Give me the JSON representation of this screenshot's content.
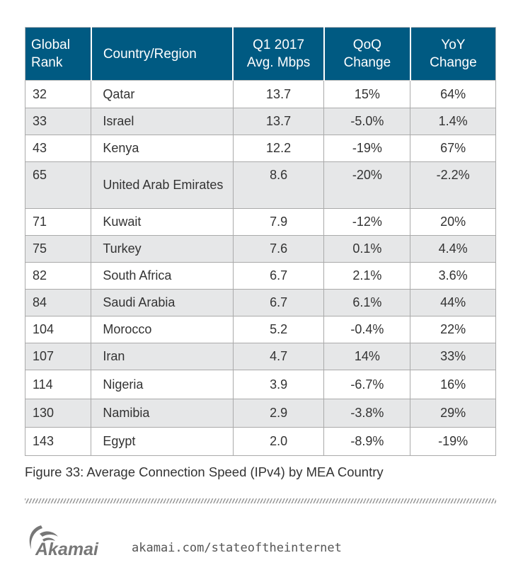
{
  "table": {
    "headers": [
      [
        "Global",
        "Rank"
      ],
      [
        "Country/Region"
      ],
      [
        "Q1 2017",
        "Avg. Mbps"
      ],
      [
        "QoQ",
        "Change"
      ],
      [
        "YoY",
        "Change"
      ]
    ],
    "rows": [
      [
        "32",
        "Qatar",
        "13.7",
        "15%",
        "64%"
      ],
      [
        "33",
        "Israel",
        "13.7",
        "-5.0%",
        "1.4%"
      ],
      [
        "43",
        "Kenya",
        "12.2",
        "-19%",
        "67%"
      ],
      [
        "65",
        "United Arab Emirates",
        "8.6",
        "-20%",
        "-2.2%"
      ],
      [
        "71",
        "Kuwait",
        "7.9",
        "-12%",
        "20%"
      ],
      [
        "75",
        "Turkey",
        "7.6",
        "0.1%",
        "4.4%"
      ],
      [
        "82",
        "South Africa",
        "6.7",
        "2.1%",
        "3.6%"
      ],
      [
        "84",
        "Saudi Arabia",
        "6.7",
        "6.1%",
        "44%"
      ],
      [
        "104",
        "Morocco",
        "5.2",
        "-0.4%",
        "22%"
      ],
      [
        "107",
        "Iran",
        "4.7",
        "14%",
        "33%"
      ],
      [
        "114",
        "Nigeria",
        "3.9",
        "-6.7%",
        "16%"
      ],
      [
        "130",
        "Namibia",
        "2.9",
        "-3.8%",
        "29%"
      ],
      [
        "143",
        "Egypt",
        "2.0",
        "-8.9%",
        "-19%"
      ]
    ]
  },
  "caption": "Figure 33: Average Connection Speed (IPv4) by MEA Country",
  "footer": {
    "logo_text": "Akamai",
    "url": "akamai.com/stateoftheinternet"
  },
  "colors": {
    "header_bg": "#005a82",
    "alt_row": "#e6e7e8"
  }
}
